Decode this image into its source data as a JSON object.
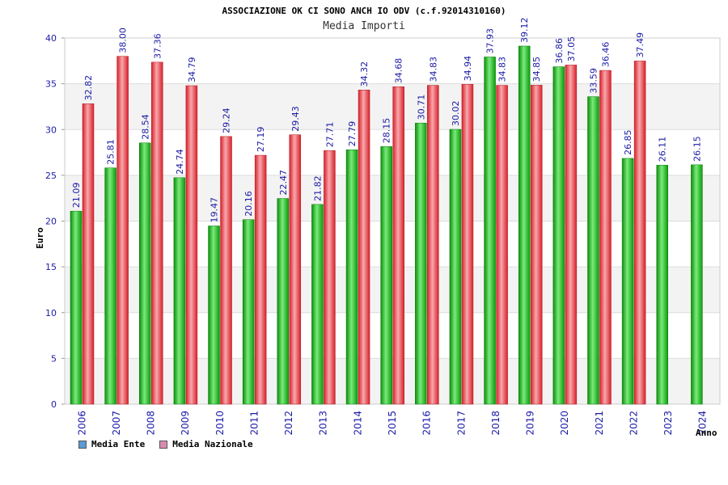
{
  "title": "ASSOCIAZIONE OK CI SONO ANCH IO ODV (c.f.92014310160)",
  "subtitle": "Media Importi",
  "colors": {
    "ente": "#10b010",
    "nazionale": "#e8303a",
    "legend_ente": "#5b9bd5",
    "legend_nazionale": "#d98cb0",
    "tick_text": "#1a1aa6"
  },
  "legend": {
    "ente": "Media Ente",
    "nazionale": "Media Nazionale"
  },
  "chart_data": {
    "type": "bar",
    "title": "ASSOCIAZIONE OK CI SONO ANCH IO ODV (c.f.92014310160)",
    "subtitle": "Media Importi",
    "xlabel": "Anno",
    "ylabel": "Euro",
    "ylim": [
      0,
      40
    ],
    "yticks": [
      0,
      5,
      10,
      15,
      20,
      25,
      30,
      35,
      40
    ],
    "grid": true,
    "legend_position": "bottom-left",
    "categories": [
      "2006",
      "2007",
      "2008",
      "2009",
      "2010",
      "2011",
      "2012",
      "2013",
      "2014",
      "2015",
      "2016",
      "2017",
      "2018",
      "2019",
      "2020",
      "2021",
      "2022",
      "2023",
      "2024"
    ],
    "series": [
      {
        "name": "Media Ente",
        "values": [
          21.09,
          25.81,
          28.54,
          24.74,
          19.47,
          20.16,
          22.47,
          21.82,
          27.79,
          28.15,
          30.71,
          30.02,
          37.93,
          39.12,
          36.86,
          33.59,
          26.85,
          26.11,
          26.15
        ],
        "labels": [
          "21.09",
          "25.81",
          "28.54",
          "24.74",
          "19.47",
          "20.16",
          "22.47",
          "21.82",
          "27.79",
          "28.15",
          "30.71",
          "30.02",
          "37.93",
          "39.12",
          "36.86",
          "33.59",
          "26.85",
          "26.11",
          "26.15"
        ]
      },
      {
        "name": "Media Nazionale",
        "values": [
          32.82,
          38.0,
          37.36,
          34.79,
          29.24,
          27.19,
          29.43,
          27.71,
          34.32,
          34.68,
          34.83,
          34.94,
          34.83,
          34.85,
          37.05,
          36.46,
          37.49,
          null,
          null
        ],
        "labels": [
          "32.82",
          "38.00",
          "37.36",
          "34.79",
          "29.24",
          "27.19",
          "29.43",
          "27.71",
          "34.32",
          "34.68",
          "34.83",
          "34.94",
          "34.83",
          "34.85",
          "37.05",
          "36.46",
          "37.49",
          null,
          null
        ]
      }
    ]
  }
}
